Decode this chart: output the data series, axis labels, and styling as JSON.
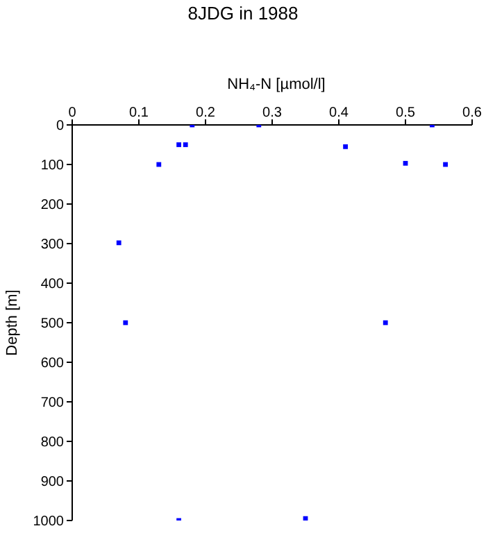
{
  "chart_data": {
    "type": "scatter",
    "title": "8JDG in 1988",
    "xlabel": "NH₄-N [µmol/l]",
    "ylabel": "Depth [m]",
    "x": [
      0.18,
      0.28,
      0.54,
      0.16,
      0.17,
      0.41,
      0.13,
      0.5,
      0.56,
      0.07,
      0.08,
      0.47,
      0.16,
      0.35
    ],
    "series": [
      {
        "color": "#0000ff",
        "values": [
          0,
          0,
          0,
          50,
          50,
          55,
          100,
          97,
          100,
          298,
          500,
          500,
          1000,
          995
        ]
      }
    ],
    "xlim": [
      0,
      0.6
    ],
    "xticks": [
      0,
      0.1,
      0.2,
      0.3,
      0.4,
      0.5,
      0.6
    ],
    "ylim": [
      1000,
      0
    ],
    "yticks": [
      0,
      100,
      200,
      300,
      400,
      500,
      600,
      700,
      800,
      900,
      1000
    ],
    "grid": false,
    "legend": false,
    "marker": "square"
  }
}
